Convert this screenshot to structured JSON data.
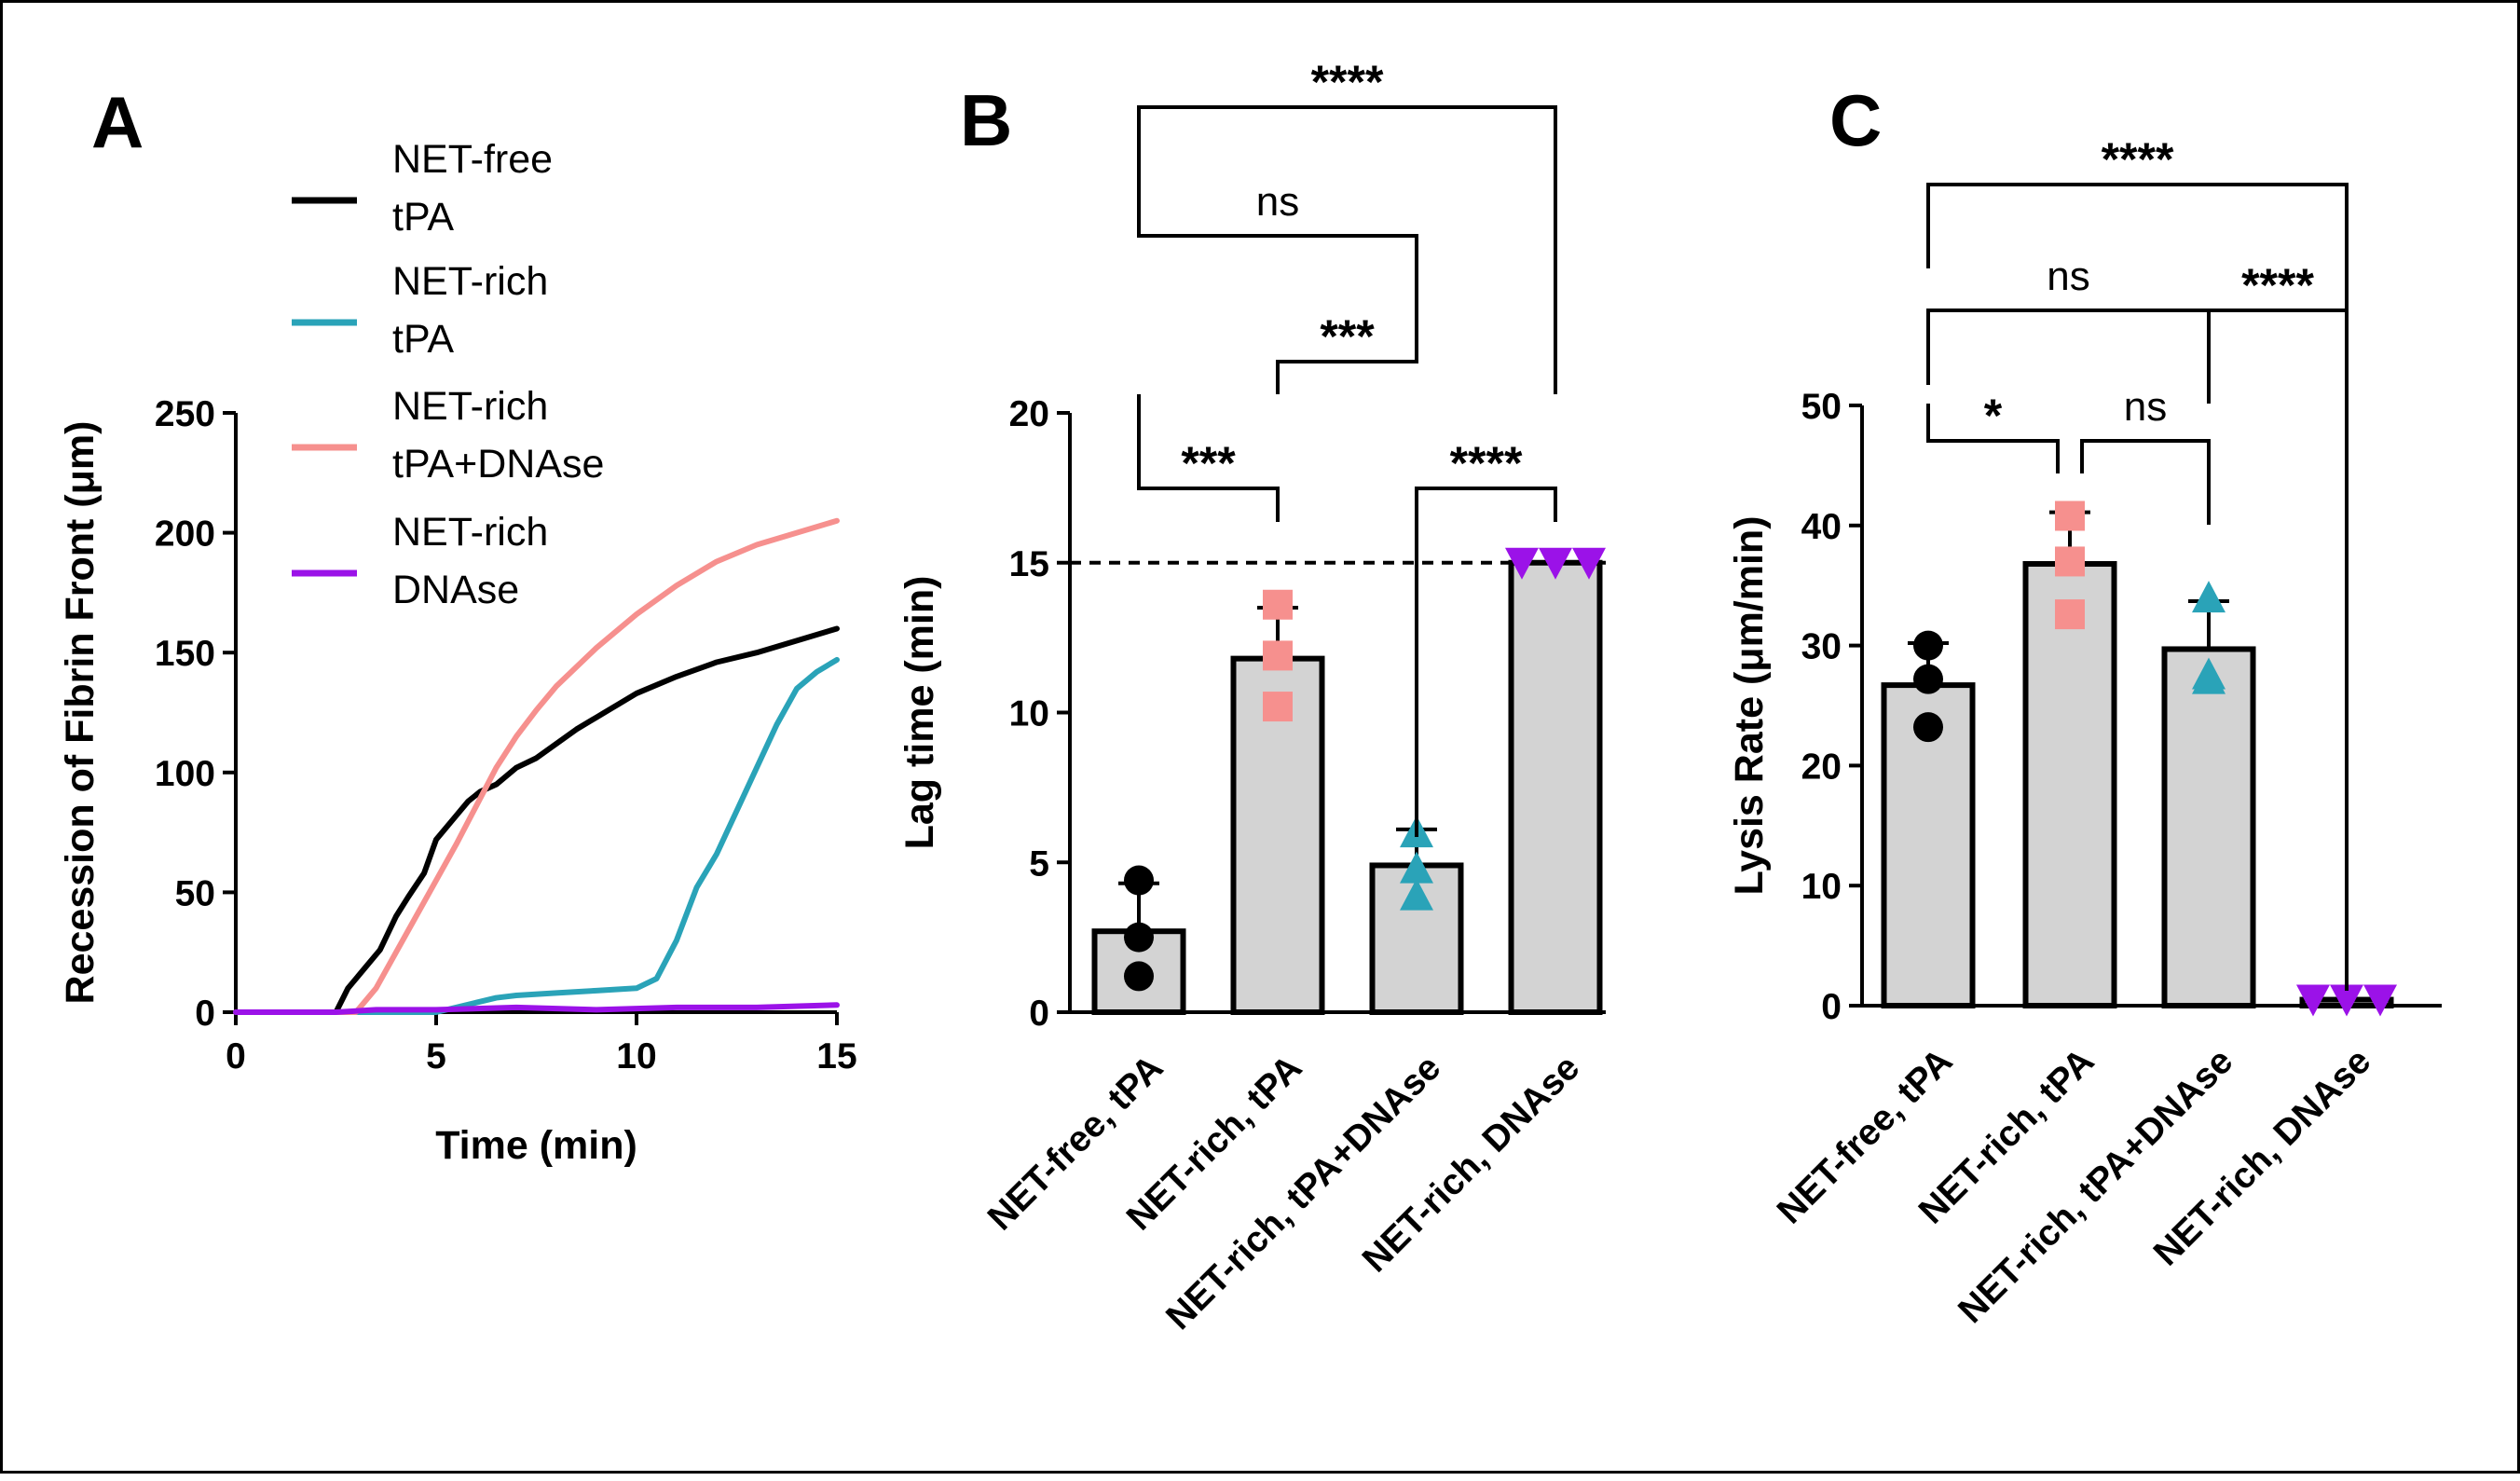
{
  "chart_data": [
    {
      "panel": "A",
      "type": "line",
      "xlabel": "Time (min)",
      "ylabel": "Recession of Fibrin Front (μm)",
      "xlim": [
        0,
        15
      ],
      "ylim": [
        0,
        250
      ],
      "xticks": [
        0,
        5,
        10,
        15
      ],
      "yticks": [
        0,
        50,
        100,
        150,
        200,
        250
      ],
      "legend": "top-left, outside plot area",
      "series": [
        {
          "name": "NET-free tPA",
          "name_lines": [
            "NET-free",
            "tPA"
          ],
          "color": "#000000",
          "x": [
            0,
            2.5,
            2.8,
            3.2,
            3.6,
            4.0,
            4.3,
            4.7,
            5.0,
            5.4,
            5.8,
            6.1,
            6.5,
            7.0,
            7.5,
            8.0,
            8.5,
            9.0,
            9.5,
            10.0,
            11.0,
            12.0,
            13.0,
            14.0,
            15.0
          ],
          "y": [
            0,
            0,
            10,
            18,
            26,
            40,
            48,
            58,
            72,
            80,
            88,
            92,
            95,
            102,
            106,
            112,
            118,
            123,
            128,
            133,
            140,
            146,
            150,
            155,
            160
          ]
        },
        {
          "name": "NET-rich tPA",
          "name_lines": [
            "NET-rich",
            "tPA"
          ],
          "color": "#2aa3b8",
          "x": [
            0,
            2.5,
            5.0,
            5.5,
            6.0,
            6.5,
            7.0,
            8.0,
            9.0,
            10.0,
            10.5,
            11.0,
            11.5,
            12.0,
            12.5,
            13.0,
            13.5,
            14.0,
            14.5,
            15.0
          ],
          "y": [
            0,
            0,
            0,
            2,
            4,
            6,
            7,
            8,
            9,
            10,
            14,
            30,
            52,
            66,
            84,
            102,
            120,
            135,
            142,
            147
          ]
        },
        {
          "name": "NET-rich tPA+DNAse",
          "name_lines": [
            "NET-rich",
            "tPA+DNAse"
          ],
          "color": "#f6908e",
          "x": [
            0,
            3.0,
            3.5,
            4.0,
            4.5,
            5.0,
            5.5,
            6.0,
            6.5,
            7.0,
            7.5,
            8.0,
            9.0,
            10.0,
            11.0,
            12.0,
            13.0,
            14.0,
            15.0
          ],
          "y": [
            0,
            0,
            10,
            25,
            40,
            55,
            70,
            86,
            102,
            115,
            126,
            136,
            152,
            166,
            178,
            188,
            195,
            200,
            205
          ]
        },
        {
          "name": "NET-rich DNAse",
          "name_lines": [
            "NET-rich",
            "DNAse"
          ],
          "color": "#9b12e8",
          "x": [
            0,
            2.5,
            3.5,
            5.0,
            7.0,
            9.0,
            11.0,
            13.0,
            15.0
          ],
          "y": [
            0,
            0,
            1,
            1,
            2,
            1,
            2,
            2,
            3
          ]
        }
      ]
    },
    {
      "panel": "B",
      "type": "bar",
      "ylabel": "Lag time (min)",
      "ylim": [
        0,
        20
      ],
      "yticks": [
        0,
        5,
        10,
        15,
        20
      ],
      "reference_line": 15,
      "categories": [
        "NET-free, tPA",
        "NET-rich, tPA",
        "NET-rich, tPA+DNAse",
        "NET-rich, DNAse"
      ],
      "values": [
        2.7,
        11.8,
        4.9,
        15
      ],
      "sd": [
        1.6,
        1.7,
        1.2,
        0
      ],
      "points": [
        [
          4.4,
          2.5,
          1.2
        ],
        [
          13.6,
          11.9,
          10.2
        ],
        [
          6.0,
          4.8,
          3.9
        ],
        [
          15.0,
          15.0,
          15.0
        ]
      ],
      "marker_shapes": [
        "circle",
        "square",
        "triangle-up",
        "triangle-down"
      ],
      "marker_colors": [
        "#000000",
        "#f6908e",
        "#2aa3b8",
        "#9b12e8"
      ],
      "comparisons": [
        {
          "groups": [
            0,
            3
          ],
          "label": "****"
        },
        {
          "groups": [
            0,
            2
          ],
          "label": "ns"
        },
        {
          "groups": [
            1,
            2
          ],
          "label": "***"
        },
        {
          "groups": [
            0,
            1
          ],
          "label": "***"
        },
        {
          "groups": [
            2,
            3
          ],
          "label": "****"
        }
      ]
    },
    {
      "panel": "C",
      "type": "bar",
      "ylabel": "Lysis Rate (μm/min)",
      "ylim": [
        0,
        50
      ],
      "yticks": [
        0,
        10,
        20,
        30,
        40,
        50
      ],
      "categories": [
        "NET-free, tPA",
        "NET-rich, tPA",
        "NET-rich, tPA+DNAse",
        "NET-rich, DNAse"
      ],
      "values": [
        26.7,
        36.8,
        29.7,
        0.5
      ],
      "sd": [
        3.5,
        4.3,
        4.0,
        0
      ],
      "points": [
        [
          30.0,
          27.2,
          23.2
        ],
        [
          40.8,
          37.0,
          32.6
        ],
        [
          34.0,
          27.2,
          27.6
        ],
        [
          0.5,
          0.5,
          0.5
        ]
      ],
      "marker_shapes": [
        "circle",
        "square",
        "triangle-up",
        "triangle-down"
      ],
      "marker_colors": [
        "#000000",
        "#f6908e",
        "#2aa3b8",
        "#9b12e8"
      ],
      "comparisons": [
        {
          "groups": [
            0,
            3
          ],
          "label": "****"
        },
        {
          "groups": [
            0,
            2
          ],
          "label": "ns"
        },
        {
          "groups": [
            2,
            3
          ],
          "label": "****"
        },
        {
          "groups": [
            0,
            1
          ],
          "label": "*"
        },
        {
          "groups": [
            1,
            2
          ],
          "label": "ns"
        }
      ]
    }
  ]
}
